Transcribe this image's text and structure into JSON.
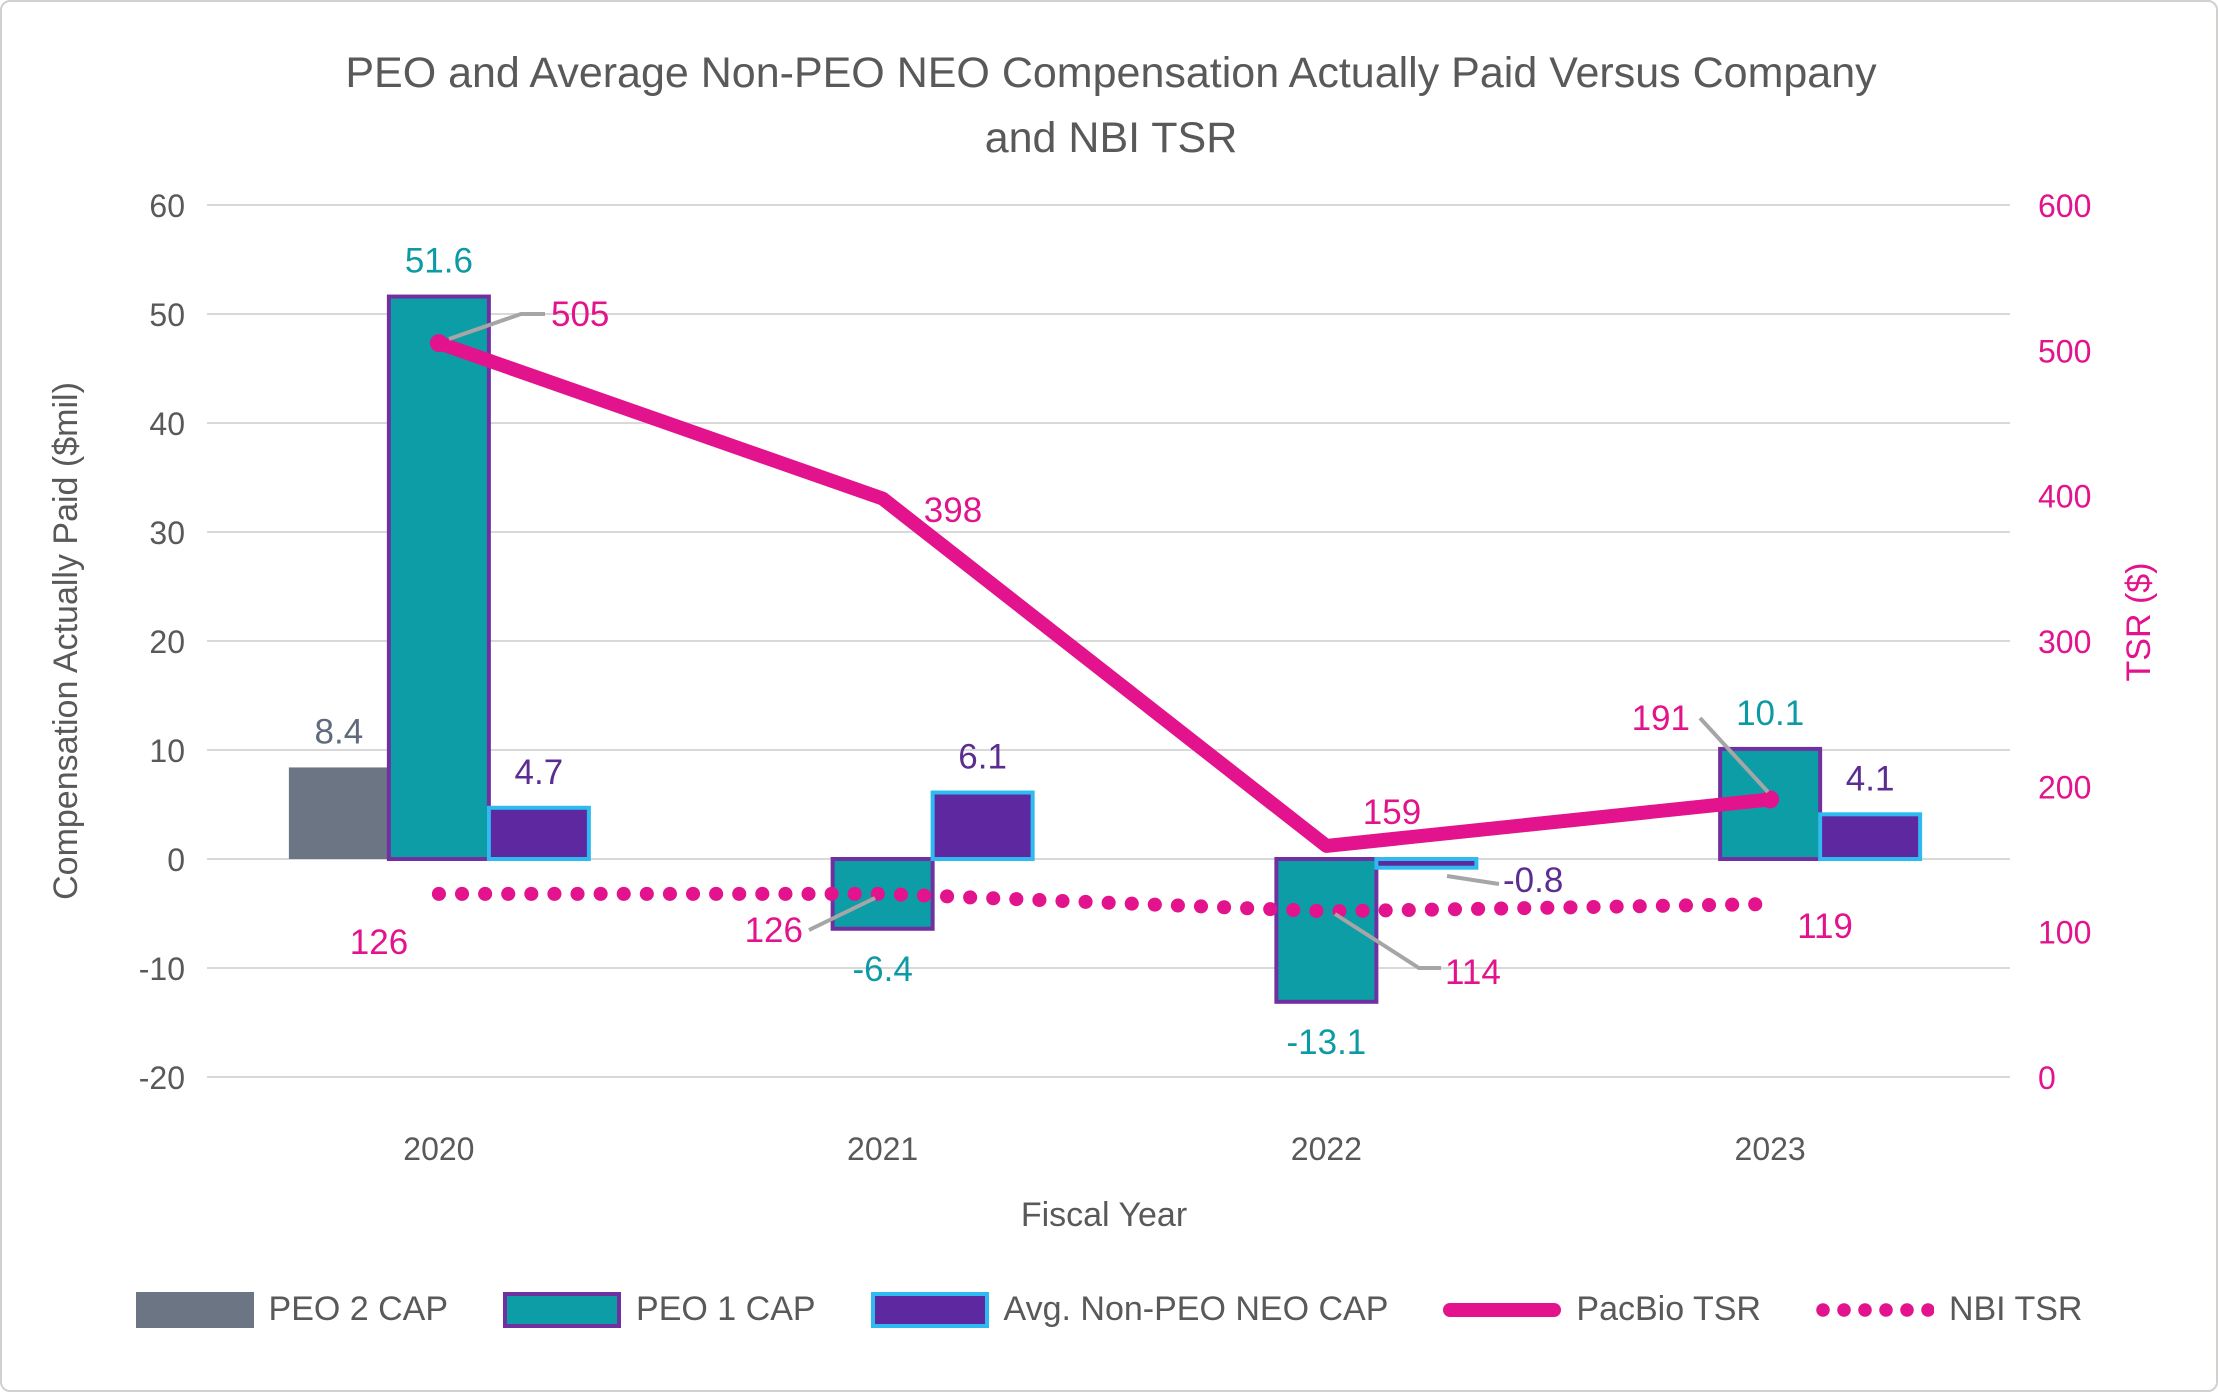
{
  "colors": {
    "gridline": "#D9D9D9",
    "leader": "#A6A6A6",
    "title_text": "#595959",
    "axis_text": "#595959",
    "pink": "#E2138C"
  },
  "chart_data": {
    "type": "bar+line combo (dual axis)",
    "title": "PEO and Average Non-PEO NEO Compensation Actually Paid Versus Company and NBI TSR",
    "title_lines": [
      "PEO and Average Non-PEO NEO Compensation Actually Paid Versus Company",
      "and NBI TSR"
    ],
    "categories": [
      "2020",
      "2021",
      "2022",
      "2023"
    ],
    "x_axis_label": "Fiscal Year",
    "left_axis": {
      "label": "Compensation Actually Paid ($mil)",
      "min": -20,
      "max": 60,
      "tick_step": 10,
      "ticks": [
        60,
        50,
        40,
        30,
        20,
        10,
        0,
        -10,
        -20
      ]
    },
    "right_axis": {
      "label": "TSR ($)",
      "min": 0,
      "max": 600,
      "tick_step": 100,
      "ticks": [
        600,
        500,
        400,
        300,
        200,
        100,
        0
      ]
    },
    "grid": true,
    "legend_position": "bottom",
    "series": [
      {
        "name": "PEO 2 CAP",
        "type": "bar",
        "axis": "left",
        "values": [
          8.4,
          null,
          null,
          null
        ],
        "fill": "#6B7583",
        "label_color": "#5F6B7C"
      },
      {
        "name": "PEO 1 CAP",
        "type": "bar",
        "axis": "left",
        "values": [
          51.6,
          -6.4,
          -13.1,
          10.1
        ],
        "fill": "#0D9DA6",
        "border": "#7030A0",
        "label_color": "#0E9AA5"
      },
      {
        "name": "Avg. Non-PEO NEO CAP",
        "type": "bar",
        "axis": "left",
        "values": [
          4.7,
          6.1,
          -0.8,
          4.1
        ],
        "fill": "#5D28A0",
        "border": "#2FBBEF",
        "label_color": "#5C2D91"
      },
      {
        "name": "PacBio TSR",
        "type": "line",
        "style": "solid",
        "axis": "right",
        "values": [
          505,
          398,
          159,
          191
        ],
        "color": "#E2138C"
      },
      {
        "name": "NBI TSR",
        "type": "line",
        "style": "dotted",
        "axis": "right",
        "values": [
          126,
          126,
          114,
          119
        ],
        "color": "#E2138C"
      }
    ]
  }
}
